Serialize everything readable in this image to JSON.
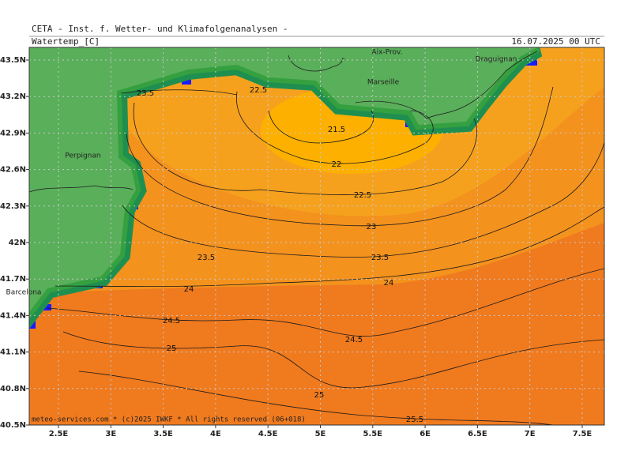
{
  "header": {
    "title": "CETA - Inst. f. Wetter- und Klimafolgenanalysen -",
    "variable": "Watertemp_[C]",
    "datetime": "16.07.2025 00 UTC"
  },
  "footer": "meteo-services.com * (c)2025 IWKF * All rights reserved (06+018)",
  "axes": {
    "lat_labels": [
      "43.5N",
      "43.2N",
      "42.9N",
      "42.6N",
      "42.3N",
      "42N",
      "41.7N",
      "41.4N",
      "41.1N",
      "40.8N",
      "40.5N"
    ],
    "lon_labels": [
      "2.5E",
      "3E",
      "3.5E",
      "4E",
      "4.5E",
      "5E",
      "5.5E",
      "6E",
      "6.5E",
      "7E",
      "7.5E"
    ]
  },
  "places": [
    "Aix-Prov.",
    "Marseille",
    "Draguignan",
    "Perpignan",
    "Barcelona"
  ],
  "contour_labels": [
    "23.5",
    "22.5",
    "21.5",
    "22",
    "22.5",
    "23",
    "23.5",
    "23.5",
    "24",
    "24",
    "24.5",
    "24.5",
    "25",
    "25",
    "25.5"
  ]
}
